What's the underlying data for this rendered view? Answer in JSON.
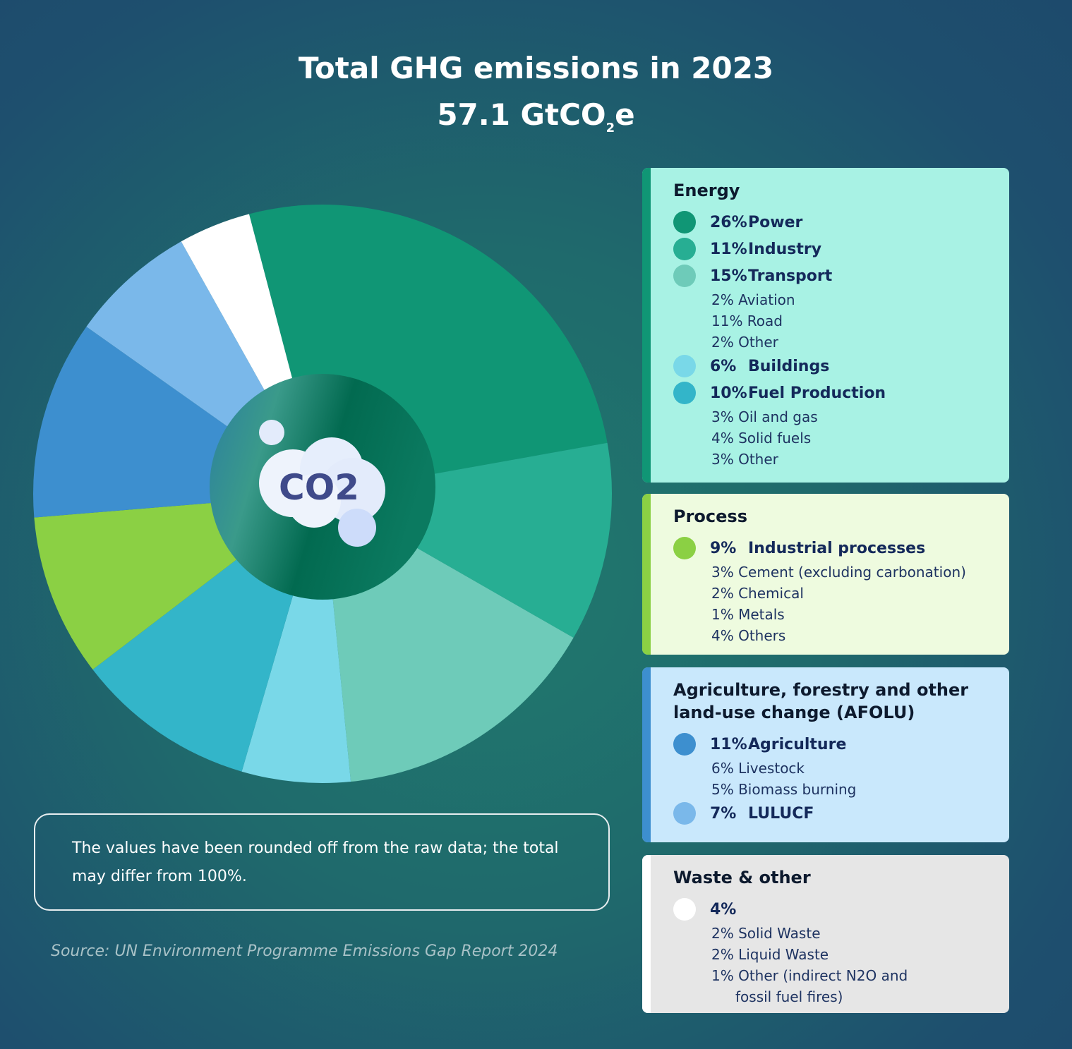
{
  "chart_data": {
    "type": "pie",
    "title": "Total GHG emissions in 2023",
    "subtitle_value": "57.1 GtCO",
    "subtitle_sub": "2",
    "subtitle_suffix": "e",
    "center_icon": "co2-cloud-icon",
    "center_text": "CO2",
    "categories": [
      "Power",
      "Industry",
      "Transport",
      "Buildings",
      "Fuel Production",
      "Industrial processes",
      "Agriculture",
      "LULUCF",
      "Waste & other"
    ],
    "values": [
      26,
      11,
      15,
      6,
      10,
      9,
      11,
      7,
      4
    ],
    "colors": [
      "#109675",
      "#27ae93",
      "#6ecbb9",
      "#79d8e8",
      "#33b5c9",
      "#8bd044",
      "#3d8fcf",
      "#7ab8ea",
      "#ffffff"
    ],
    "unit": "%"
  },
  "note": "The values have been rounded off from the raw data; the total may differ from 100%.",
  "source": "Source: UN Environment Programme Emissions Gap Report 2024",
  "legend": [
    {
      "title": "Energy",
      "bg": "#a8f2e4",
      "bar": "#109675",
      "items": [
        {
          "type": "main",
          "pct": "26%",
          "label": "Power",
          "color": "#109675"
        },
        {
          "type": "main",
          "pct": "11%",
          "label": "Industry",
          "color": "#27ae93"
        },
        {
          "type": "main",
          "pct": "15%",
          "label": "Transport",
          "color": "#6ecbb9"
        },
        {
          "type": "sub",
          "text": "2% Aviation"
        },
        {
          "type": "sub",
          "text": "11% Road"
        },
        {
          "type": "sub",
          "text": "2% Other"
        },
        {
          "type": "main",
          "pct": "6%",
          "label": "Buildings",
          "color": "#79d8e8"
        },
        {
          "type": "main",
          "pct": "10%",
          "label": "Fuel Production",
          "color": "#33b5c9"
        },
        {
          "type": "sub",
          "text": "3% Oil and gas"
        },
        {
          "type": "sub",
          "text": "4% Solid fuels"
        },
        {
          "type": "sub",
          "text": "3% Other"
        }
      ]
    },
    {
      "title": "Process",
      "bg": "#eefbdf",
      "bar": "#8bd044",
      "items": [
        {
          "type": "main",
          "pct": "9%",
          "label": "Industrial processes",
          "color": "#8bd044"
        },
        {
          "type": "sub",
          "text": "3% Cement (excluding carbonation)"
        },
        {
          "type": "sub",
          "text": "2% Chemical"
        },
        {
          "type": "sub",
          "text": "1% Metals"
        },
        {
          "type": "sub",
          "text": "4% Others"
        }
      ]
    },
    {
      "title": "Agriculture, forestry and other land-use change (AFOLU)",
      "bg": "#c9e8fc",
      "bar": "#3d8fcf",
      "items": [
        {
          "type": "main",
          "pct": "11%",
          "label": "Agriculture",
          "color": "#3d8fcf"
        },
        {
          "type": "sub",
          "text": "6% Livestock"
        },
        {
          "type": "sub",
          "text": "5% Biomass burning"
        },
        {
          "type": "main",
          "pct": "7%",
          "label": "LULUCF",
          "color": "#7ab8ea"
        }
      ]
    },
    {
      "title": "Waste & other",
      "bg": "#e6e6e6",
      "bar": "#ffffff",
      "items": [
        {
          "type": "main",
          "pct": "4%",
          "label": "",
          "color": "#ffffff"
        },
        {
          "type": "sub",
          "text": "2% Solid Waste"
        },
        {
          "type": "sub",
          "text": "2% Liquid Waste"
        },
        {
          "type": "sub",
          "text": "1% Other (indirect N2O and"
        },
        {
          "type": "sub2",
          "text": "fossil fuel fires)"
        }
      ]
    }
  ]
}
